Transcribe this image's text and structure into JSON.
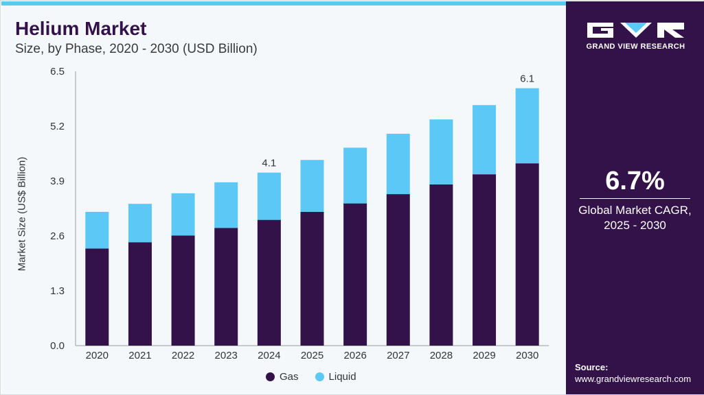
{
  "header": {
    "title": "Helium Market",
    "subtitle": "Size, by Phase, 2020 - 2030 (USD Billion)"
  },
  "colors": {
    "gas": "#33124a",
    "liquid": "#5bc8f5",
    "accent": "#5bc8f5",
    "sidebar": "#33124a"
  },
  "chart_data": {
    "type": "bar",
    "stacked": true,
    "categories": [
      "2020",
      "2021",
      "2022",
      "2023",
      "2024",
      "2025",
      "2026",
      "2027",
      "2028",
      "2029",
      "2030"
    ],
    "series": [
      {
        "name": "Gas",
        "values": [
          2.3,
          2.45,
          2.61,
          2.79,
          2.98,
          3.17,
          3.37,
          3.59,
          3.82,
          4.06,
          4.32
        ]
      },
      {
        "name": "Liquid",
        "values": [
          0.87,
          0.91,
          1.0,
          1.08,
          1.12,
          1.23,
          1.32,
          1.43,
          1.54,
          1.64,
          1.78
        ]
      }
    ],
    "annotations": [
      {
        "category": "2024",
        "label": "4.1"
      },
      {
        "category": "2030",
        "label": "6.1"
      }
    ],
    "title": "Helium Market",
    "subtitle": "Size, by Phase, 2020 - 2030 (USD Billion)",
    "xlabel": "",
    "ylabel": "Market Size (US$ Billion)",
    "ylim": [
      0,
      6.5
    ],
    "yticks": [
      "0.0",
      "1.3",
      "2.6",
      "3.9",
      "5.2",
      "6.5"
    ],
    "grid": false,
    "legend_position": "bottom"
  },
  "legend": [
    {
      "label": "Gas",
      "color": "#33124a"
    },
    {
      "label": "Liquid",
      "color": "#5bc8f5"
    }
  ],
  "sidebar": {
    "logo_text": "GRAND VIEW RESEARCH",
    "cagr_value": "6.7%",
    "cagr_label_line1": "Global Market CAGR,",
    "cagr_label_line2": "2025 - 2030",
    "source_label": "Source:",
    "source_url": "www.grandviewresearch.com"
  }
}
